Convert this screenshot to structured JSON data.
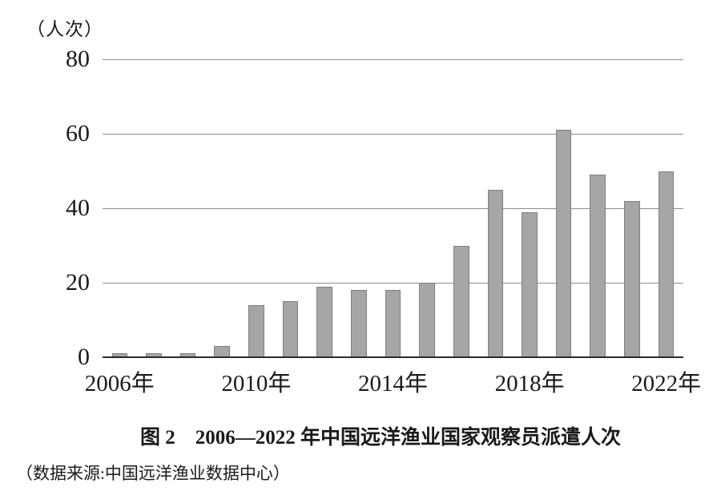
{
  "unit_label": "（人次）",
  "caption": {
    "title": "图 2　2006—2022 年中国远洋渔业国家观察员派遣人次",
    "source": "（数据来源:中国远洋渔业数据中心）"
  },
  "chart_data": {
    "type": "bar",
    "title": "图2 2006—2022年中国远洋渔业国家观察员派遣人次",
    "ylabel": "（人次）",
    "xlabel": "",
    "categories": [
      "2006",
      "2007",
      "2008",
      "2009",
      "2010",
      "2011",
      "2012",
      "2013",
      "2014",
      "2015",
      "2016",
      "2017",
      "2018",
      "2019",
      "2020",
      "2021",
      "2022"
    ],
    "values": [
      1,
      1,
      1,
      3,
      14,
      15,
      19,
      18,
      18,
      20,
      30,
      45,
      39,
      61,
      49,
      42,
      50
    ],
    "ylim": [
      0,
      80
    ],
    "y_ticks": [
      80,
      60,
      40,
      20,
      0
    ],
    "x_tick_labels": [
      {
        "index": 0,
        "label": "2006年"
      },
      {
        "index": 4,
        "label": "2010年"
      },
      {
        "index": 8,
        "label": "2014年"
      },
      {
        "index": 12,
        "label": "2018年"
      },
      {
        "index": 16,
        "label": "2022年"
      }
    ],
    "grid": true,
    "legend": false,
    "bar_color": "#a6a6a6",
    "bar_border_color": "#7f7f7f",
    "gridline_color": "#8c8c8c",
    "axis_color": "#2b2b2b",
    "source_note": "数据来源:中国远洋渔业数据中心"
  }
}
